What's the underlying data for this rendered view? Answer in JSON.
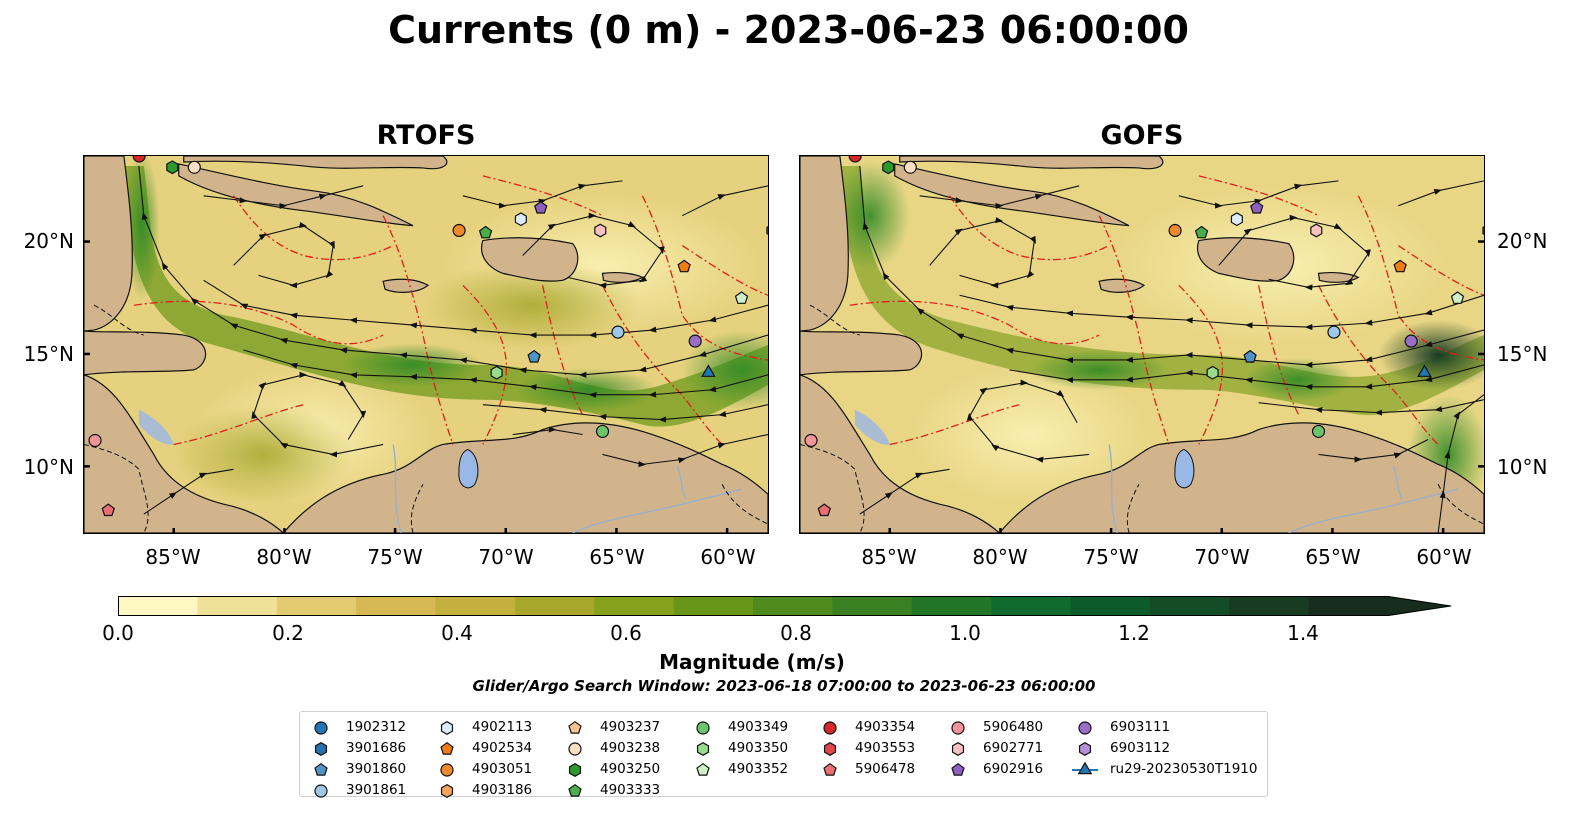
{
  "title": "Currents (0 m) - 2023-06-23 06:00:00",
  "panels": {
    "rtofs": {
      "title": "RTOFS"
    },
    "gofs": {
      "title": "GOFS"
    }
  },
  "axes": {
    "x_ticks": [
      "85°W",
      "80°W",
      "75°W",
      "70°W",
      "65°W",
      "60°W"
    ],
    "y_ticks": [
      "20°N",
      "15°N",
      "10°N"
    ]
  },
  "colorbar": {
    "title": "Magnitude (m/s)",
    "tick_labels": [
      "0.0",
      "0.2",
      "0.4",
      "0.6",
      "0.8",
      "1.0",
      "1.2",
      "1.4"
    ],
    "colors": [
      "#fdf7c3",
      "#f0e199",
      "#e3cb72",
      "#d6b952",
      "#c3b03f",
      "#a7a62d",
      "#86a11b",
      "#689619",
      "#4f8a1d",
      "#3a7f22",
      "#227427",
      "#126b2e",
      "#0d5b2b",
      "#134c26",
      "#173c22",
      "#172c1c"
    ]
  },
  "search_window": "Glider/Argo Search Window: 2023-06-18 07:00:00 to 2023-06-23 06:00:00",
  "legend": {
    "columns": [
      [
        {
          "label": "1902312",
          "marker": "circle",
          "color": "#1f77b4"
        },
        {
          "label": "3901686",
          "marker": "hexagon",
          "color": "#2a6fae"
        },
        {
          "label": "3901860",
          "marker": "pentagon",
          "color": "#4f93c8"
        },
        {
          "label": "3901861",
          "marker": "circle",
          "color": "#9ec8ea"
        }
      ],
      [
        {
          "label": "4902113",
          "marker": "hexagon",
          "color": "#dcecfa"
        },
        {
          "label": "4902534",
          "marker": "pentagon",
          "color": "#ef7d14"
        },
        {
          "label": "4903051",
          "marker": "circle",
          "color": "#ef8a2c"
        },
        {
          "label": "4903186",
          "marker": "hexagon",
          "color": "#f6a45e"
        }
      ],
      [
        {
          "label": "4903237",
          "marker": "pentagon",
          "color": "#f8c292"
        },
        {
          "label": "4903238",
          "marker": "circle",
          "color": "#fbdfc3"
        },
        {
          "label": "4903250",
          "marker": "hexagon",
          "color": "#2b9a2b"
        },
        {
          "label": "4903333",
          "marker": "pentagon",
          "color": "#4aae4a"
        }
      ],
      [
        {
          "label": "4903349",
          "marker": "circle",
          "color": "#6cc46c"
        },
        {
          "label": "4903350",
          "marker": "hexagon",
          "color": "#9ada8e"
        },
        {
          "label": "4903352",
          "marker": "pentagon",
          "color": "#cff0c7"
        }
      ],
      [
        {
          "label": "4903354",
          "marker": "circle",
          "color": "#d62728"
        },
        {
          "label": "4903553",
          "marker": "hexagon",
          "color": "#e0464b"
        },
        {
          "label": "5906478",
          "marker": "pentagon",
          "color": "#ea6f73"
        }
      ],
      [
        {
          "label": "5906480",
          "marker": "circle",
          "color": "#f39496"
        },
        {
          "label": "6902771",
          "marker": "hexagon",
          "color": "#fac1c3"
        },
        {
          "label": "6902916",
          "marker": "pentagon",
          "color": "#8f5fbf"
        }
      ],
      [
        {
          "label": "6903111",
          "marker": "circle",
          "color": "#9a6dc6"
        },
        {
          "label": "6903112",
          "marker": "hexagon",
          "color": "#b590d8"
        },
        {
          "label": "ru29-20230530T1910",
          "marker": "triangle-line",
          "color": "#1f77b4"
        }
      ]
    ]
  },
  "markers": [
    {
      "id": "4903238",
      "lon": -84.0,
      "lat": 23.4,
      "marker": "circle",
      "color": "#fbdfc3"
    },
    {
      "id": "4903250",
      "lon": -85.0,
      "lat": 23.4,
      "marker": "hexagon",
      "color": "#2b9a2b"
    },
    {
      "id": "4903354",
      "lon": -86.5,
      "lat": 23.9,
      "marker": "circle",
      "color": "#d62728"
    },
    {
      "id": "4903051",
      "lon": -72.0,
      "lat": 20.6,
      "marker": "circle",
      "color": "#ef8a2c"
    },
    {
      "id": "4903333",
      "lon": -70.8,
      "lat": 20.5,
      "marker": "pentagon",
      "color": "#4aae4a"
    },
    {
      "id": "4902113",
      "lon": -69.2,
      "lat": 21.1,
      "marker": "hexagon",
      "color": "#dcecfa"
    },
    {
      "id": "6902916",
      "lon": -68.3,
      "lat": 21.6,
      "marker": "pentagon",
      "color": "#8f5fbf"
    },
    {
      "id": "6902771",
      "lon": -65.6,
      "lat": 20.6,
      "marker": "hexagon",
      "color": "#fac1c3"
    },
    {
      "id": "3901686",
      "lon": -57.8,
      "lat": 20.6,
      "marker": "hexagon",
      "color": "#2a6fae"
    },
    {
      "id": "4902534",
      "lon": -61.8,
      "lat": 19.0,
      "marker": "pentagon",
      "color": "#ef7d14"
    },
    {
      "id": "4903352",
      "lon": -59.2,
      "lat": 17.6,
      "marker": "pentagon",
      "color": "#cff0c7"
    },
    {
      "id": "3901861",
      "lon": -64.8,
      "lat": 16.1,
      "marker": "circle",
      "color": "#9ec8ea"
    },
    {
      "id": "6903111",
      "lon": -61.3,
      "lat": 15.7,
      "marker": "circle",
      "color": "#9a6dc6"
    },
    {
      "id": "3901860",
      "lon": -68.6,
      "lat": 15.0,
      "marker": "pentagon",
      "color": "#4f93c8"
    },
    {
      "id": "4903350",
      "lon": -70.3,
      "lat": 14.3,
      "marker": "hexagon",
      "color": "#9ada8e"
    },
    {
      "id": "ru29-20230530T1910",
      "lon": -60.7,
      "lat": 14.3,
      "marker": "triangle",
      "color": "#1f77b4"
    },
    {
      "id": "4903349",
      "lon": -65.5,
      "lat": 11.7,
      "marker": "circle",
      "color": "#6cc46c"
    },
    {
      "id": "5906480",
      "lon": -88.5,
      "lat": 11.3,
      "marker": "circle",
      "color": "#f39496"
    },
    {
      "id": "5906478",
      "lon": -87.9,
      "lat": 8.2,
      "marker": "pentagon",
      "color": "#ea6f73"
    }
  ]
}
